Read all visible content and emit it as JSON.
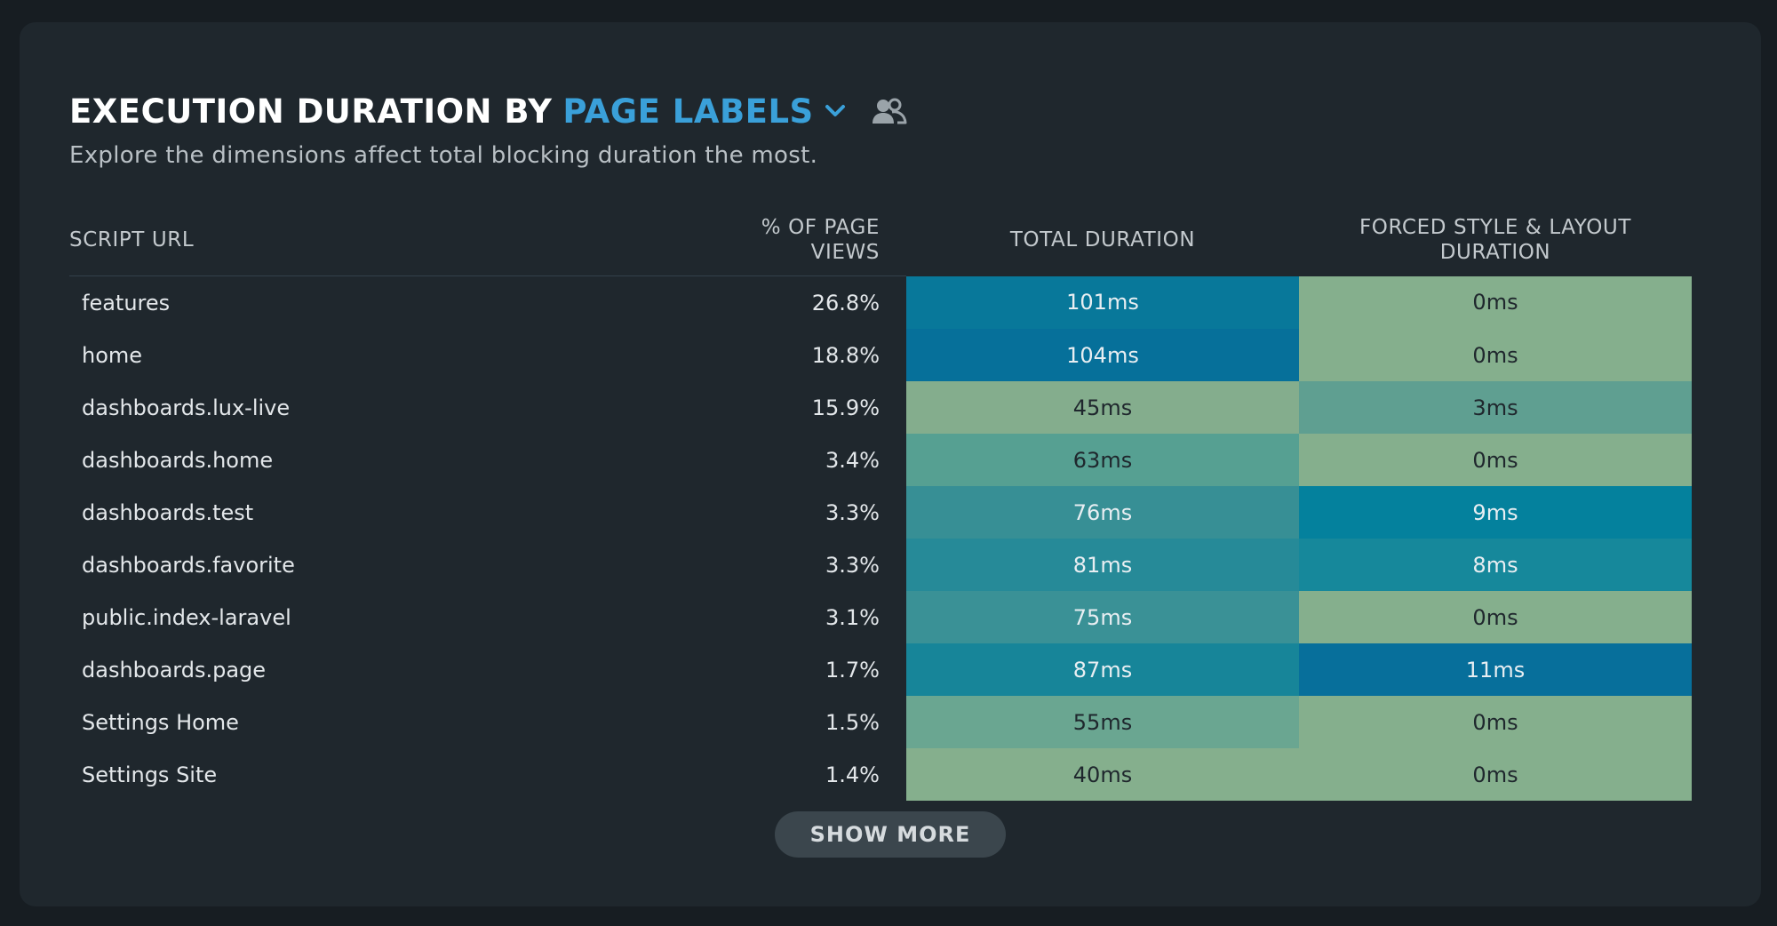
{
  "header": {
    "title_prefix": "EXECUTION DURATION BY",
    "dimension_label": "PAGE LABELS",
    "dimension_icon": "chevron-down-icon",
    "segment_icon": "users-icon",
    "subtitle": "Explore the dimensions affect total blocking duration the most."
  },
  "table": {
    "columns": {
      "url": "SCRIPT URL",
      "views_line1": "% OF PAGE",
      "views_line2": "VIEWS",
      "total": "TOTAL DURATION",
      "forced_line1": "FORCED STYLE & LAYOUT",
      "forced_line2": "DURATION"
    },
    "rows": [
      {
        "url": "features",
        "views": "26.8%",
        "total": "101ms",
        "forced": "0ms",
        "total_color": "#08789a",
        "forced_color": "#85af8d"
      },
      {
        "url": "home",
        "views": "18.8%",
        "total": "104ms",
        "forced": "0ms",
        "total_color": "#06709a",
        "forced_color": "#85af8d"
      },
      {
        "url": "dashboards.lux-live",
        "views": "15.9%",
        "total": "45ms",
        "forced": "3ms",
        "total_color": "#84ad8d",
        "forced_color": "#5f9f91"
      },
      {
        "url": "dashboards.home",
        "views": "3.4%",
        "total": "63ms",
        "forced": "0ms",
        "total_color": "#56a092",
        "forced_color": "#85af8d"
      },
      {
        "url": "dashboards.test",
        "views": "3.3%",
        "total": "76ms",
        "forced": "9ms",
        "total_color": "#378f95",
        "forced_color": "#04819d"
      },
      {
        "url": "dashboards.favorite",
        "views": "3.3%",
        "total": "81ms",
        "forced": "8ms",
        "total_color": "#268a98",
        "forced_color": "#16889b"
      },
      {
        "url": "public.index-laravel",
        "views": "3.1%",
        "total": "75ms",
        "forced": "0ms",
        "total_color": "#3a9196",
        "forced_color": "#85af8d"
      },
      {
        "url": "dashboards.page",
        "views": "1.7%",
        "total": "87ms",
        "forced": "11ms",
        "total_color": "#178599",
        "forced_color": "#076f9b"
      },
      {
        "url": "Settings Home",
        "views": "1.5%",
        "total": "55ms",
        "forced": "0ms",
        "total_color": "#6aa691",
        "forced_color": "#85af8d"
      },
      {
        "url": "Settings Site",
        "views": "1.4%",
        "total": "40ms",
        "forced": "0ms",
        "total_color": "#85af8d",
        "forced_color": "#85af8d"
      }
    ],
    "text_dark": "#1f272d",
    "text_light": "#e8eef2"
  },
  "show_more_label": "SHOW MORE",
  "colors": {
    "accent": "#3aa0d9",
    "card_bg": "#1f272d",
    "page_bg": "#171d22"
  }
}
